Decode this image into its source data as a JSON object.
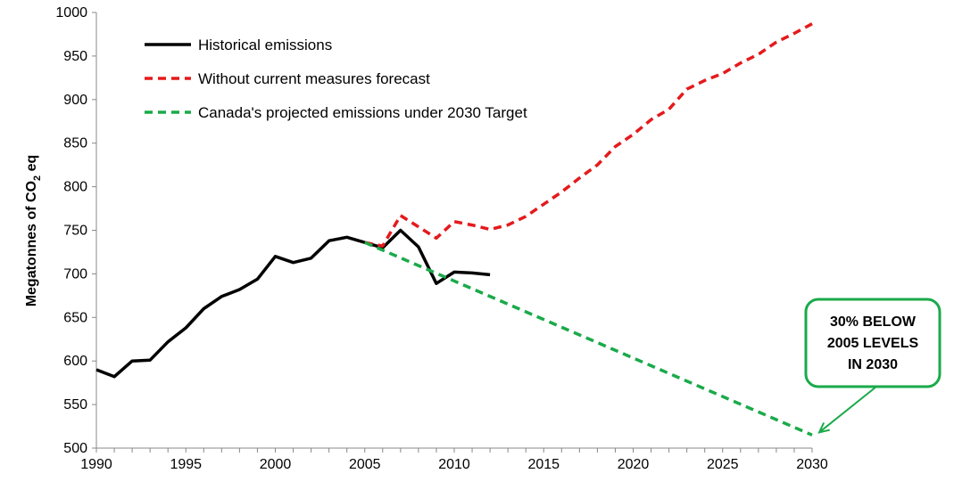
{
  "chart_data": {
    "type": "line",
    "title": "",
    "xlabel": "",
    "ylabel": "Megatonnes of CO",
    "ylabel_subscript": "2",
    "ylabel_suffix": " eq",
    "xlim": [
      1990,
      2030
    ],
    "ylim": [
      500,
      1000
    ],
    "x_ticks": [
      1990,
      1995,
      2000,
      2005,
      2010,
      2015,
      2020,
      2025,
      2030
    ],
    "y_ticks": [
      500,
      550,
      600,
      650,
      700,
      750,
      800,
      850,
      900,
      950,
      1000
    ],
    "grid": false,
    "legend_position": "top-left",
    "series": [
      {
        "name": "Historical emissions",
        "color": "#000000",
        "style": "solid",
        "x": [
          1990,
          1991,
          1992,
          1993,
          1994,
          1995,
          1996,
          1997,
          1998,
          1999,
          2000,
          2001,
          2002,
          2003,
          2004,
          2005,
          2006,
          2007,
          2008,
          2009,
          2010,
          2011,
          2012
        ],
        "y": [
          590,
          582,
          600,
          601,
          622,
          638,
          660,
          674,
          682,
          694,
          720,
          713,
          718,
          738,
          742,
          736,
          730,
          750,
          731,
          689,
          702,
          701,
          699
        ]
      },
      {
        "name": "Without current measures forecast",
        "color": "#e41a1c",
        "style": "dashed",
        "x": [
          2005,
          2006,
          2007,
          2008,
          2009,
          2010,
          2011,
          2012,
          2013,
          2014,
          2015,
          2016,
          2017,
          2018,
          2019,
          2020,
          2021,
          2022,
          2023,
          2024,
          2025,
          2026,
          2027,
          2028,
          2029,
          2030
        ],
        "y": [
          736,
          732,
          767,
          754,
          741,
          760,
          756,
          751,
          756,
          766,
          780,
          794,
          810,
          825,
          846,
          860,
          877,
          889,
          912,
          922,
          930,
          942,
          952,
          966,
          976,
          987
        ]
      },
      {
        "name": "Canada's projected emissions under 2030 Target",
        "color": "#1aaa4a",
        "style": "dashed",
        "x": [
          2005,
          2030
        ],
        "y": [
          736,
          515
        ]
      }
    ],
    "annotations": [
      {
        "lines": [
          "30% BELOW",
          "2005 LEVELS",
          "IN 2030"
        ],
        "color": "#1aaa4a",
        "points_to": [
          2030,
          515
        ]
      }
    ]
  }
}
